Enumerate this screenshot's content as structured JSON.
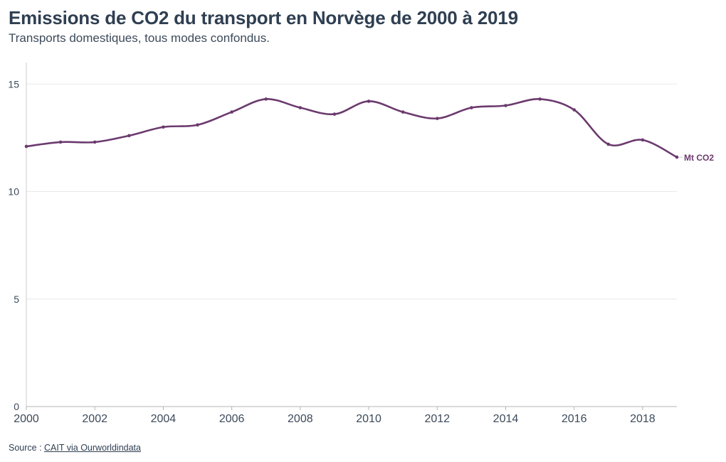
{
  "title": "Emissions de CO2 du transport en Norvège de 2000 à 2019",
  "subtitle": "Transports domestiques, tous modes confondus.",
  "source": {
    "prefix": "Source : ",
    "link_text": "CAIT via Ourworldindata"
  },
  "colors": {
    "line": "#6b3a6e",
    "text": "#2f3f52",
    "grid": "#e8e8e8",
    "axis": "#cccccc"
  },
  "chart_data": {
    "type": "line",
    "x": [
      2000,
      2001,
      2002,
      2003,
      2004,
      2005,
      2006,
      2007,
      2008,
      2009,
      2010,
      2011,
      2012,
      2013,
      2014,
      2015,
      2016,
      2017,
      2018,
      2019
    ],
    "series": [
      {
        "name": "Mt CO2",
        "values": [
          12.1,
          12.3,
          12.3,
          12.6,
          13.0,
          13.1,
          13.7,
          14.3,
          13.9,
          13.6,
          14.2,
          13.7,
          13.4,
          13.9,
          14.0,
          14.3,
          13.8,
          12.2,
          12.4,
          11.6
        ]
      }
    ],
    "xlim": [
      2000,
      2019
    ],
    "ylim": [
      0,
      16
    ],
    "xticks": [
      2000,
      2002,
      2004,
      2006,
      2008,
      2010,
      2012,
      2014,
      2016,
      2018
    ],
    "yticks": [
      0,
      5,
      10,
      15
    ],
    "grid": true,
    "legend": "end-of-line label"
  }
}
